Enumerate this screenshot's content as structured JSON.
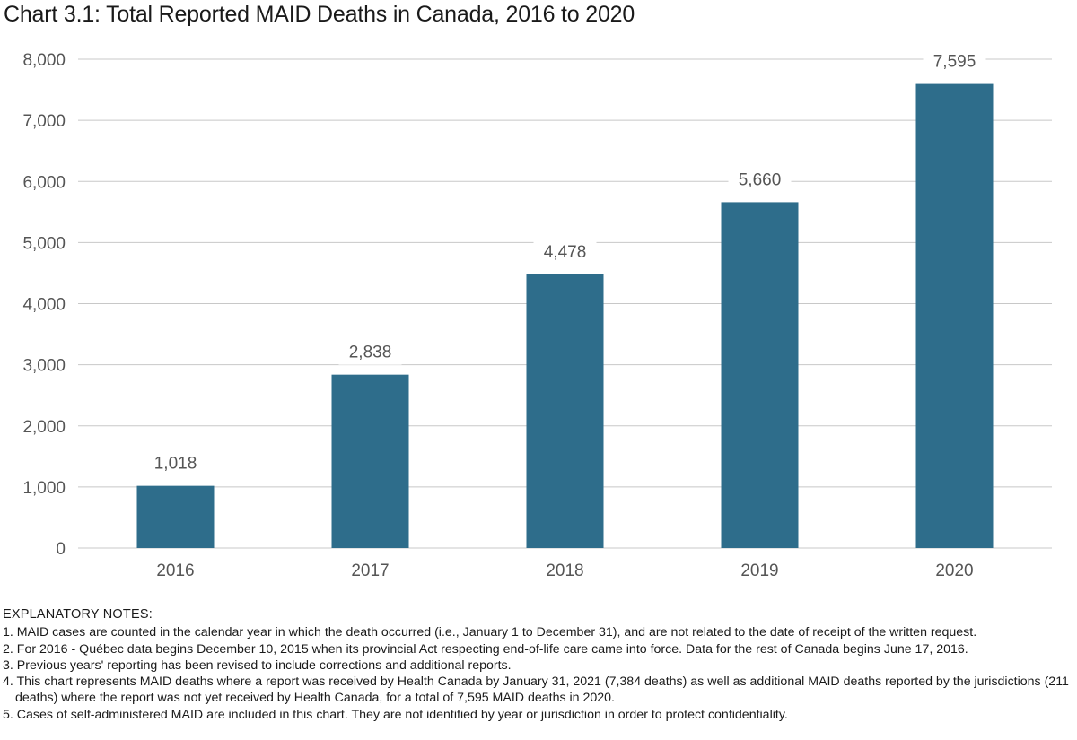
{
  "title": "Chart 3.1: Total Reported MAID Deaths in Canada, 2016 to 2020",
  "chart_data": {
    "type": "bar",
    "title": "Chart 3.1: Total Reported MAID Deaths in Canada, 2016 to 2020",
    "categories": [
      "2016",
      "2017",
      "2018",
      "2019",
      "2020"
    ],
    "values": [
      1018,
      2838,
      4478,
      5660,
      7595
    ],
    "data_labels": [
      "1,018",
      "2,838",
      "4,478",
      "5,660",
      "7,595"
    ],
    "y_ticks": [
      0,
      1000,
      2000,
      3000,
      4000,
      5000,
      6000,
      7000,
      8000
    ],
    "y_tick_labels": [
      "0",
      "1,000",
      "2,000",
      "3,000",
      "4,000",
      "5,000",
      "6,000",
      "7,000",
      "8,000"
    ],
    "ylim": [
      0,
      8000
    ],
    "xlabel": "",
    "ylabel": "",
    "grid": true,
    "bar_color": "#2e6d8b",
    "grid_color": "#c8c8c8"
  },
  "notes": {
    "heading": "EXPLANATORY NOTES:",
    "items": [
      "1. MAID cases are counted in the calendar year in which the death occurred (i.e., January 1 to December 31), and are not related to the date of receipt of the written request.",
      "2. For 2016 - Québec data begins December 10, 2015 when its provincial Act respecting end-of-life care came into force. Data for the rest of Canada begins June 17, 2016.",
      "3. Previous years' reporting has been revised to include corrections and additional reports.",
      "4. This chart represents MAID deaths where a report was received by Health Canada by January 31, 2021 (7,384 deaths) as well as additional MAID deaths reported by the jurisdictions (211 deaths) where the report was not yet received by Health Canada, for a total of 7,595 MAID deaths in 2020.",
      "5. Cases of self-administered MAID are included in this chart. They are not identified by year or jurisdiction in order to protect confidentiality."
    ]
  }
}
